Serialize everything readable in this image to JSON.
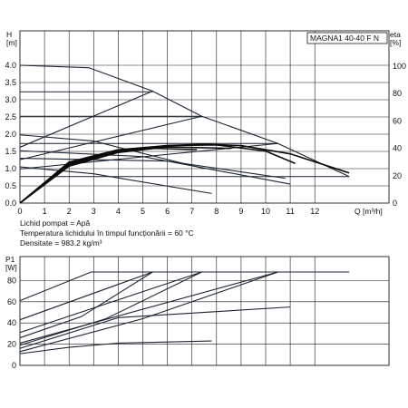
{
  "model_box": "MAGNA1 40-40 F N",
  "info_lines": [
    "Lichid pompat = Apă",
    "Temperatura lichidului în timpul funcționării = 60 °C",
    "Densitate = 983.2 kg/m³"
  ],
  "top_axis": {
    "y_title": "H",
    "y_unit": "[m]",
    "right_title": "eta",
    "right_unit": "[%]",
    "x_title": "Q [m³/h]"
  },
  "bottom_axis": {
    "y_title": "P1",
    "y_unit": "[W]"
  },
  "chart_data": [
    {
      "type": "line",
      "title": "",
      "xlabel": "Q [m³/h]",
      "ylabel": "H [m]",
      "y2label": "eta [%]",
      "xlim": [
        0,
        14
      ],
      "ylim": [
        0,
        4.5
      ],
      "y2lim": [
        0,
        140
      ],
      "x_ticks": [
        "0",
        "1",
        "2",
        "3",
        "4",
        "5",
        "6",
        "7",
        "8",
        "9",
        "10",
        "11",
        "12"
      ],
      "y_ticks": [
        "0.0",
        "0.5",
        "1.0",
        "1.5",
        "2.0",
        "2.5",
        "3.0",
        "3.5",
        "4.0"
      ],
      "y2_ticks": [
        "0",
        "20",
        "40",
        "60",
        "80",
        "100"
      ],
      "grid": true,
      "series_qh": [
        {
          "kind": "max-curve",
          "x": [
            0,
            2.8,
            5.4,
            7.4,
            10.5,
            13.4
          ],
          "y": [
            4.0,
            3.93,
            3.25,
            2.52,
            1.73,
            0.77
          ]
        },
        {
          "kind": "constant-pressure",
          "x": [
            0,
            5.4
          ],
          "y": [
            3.23,
            3.23
          ]
        },
        {
          "kind": "constant-pressure",
          "x": [
            0,
            7.4
          ],
          "y": [
            2.52,
            2.52
          ]
        },
        {
          "kind": "constant-pressure",
          "x": [
            0,
            10.5
          ],
          "y": [
            1.73,
            1.73
          ]
        },
        {
          "kind": "constant-pressure",
          "x": [
            0,
            13.4
          ],
          "y": [
            0.77,
            0.77
          ]
        },
        {
          "kind": "proportional-pressure",
          "x": [
            0,
            5.4
          ],
          "y": [
            1.62,
            3.25
          ]
        },
        {
          "kind": "proportional-pressure",
          "x": [
            0,
            7.4
          ],
          "y": [
            1.26,
            2.52
          ]
        },
        {
          "kind": "proportional-pressure",
          "x": [
            0,
            10.5
          ],
          "y": [
            0.99,
            1.73
          ]
        },
        {
          "kind": "fixed-speed",
          "x": [
            0,
            3,
            7.5
          ],
          "y": [
            1.98,
            1.8,
            1.0
          ]
        },
        {
          "kind": "fixed-speed",
          "x": [
            0,
            5,
            11
          ],
          "y": [
            1.52,
            1.35,
            0.55
          ]
        },
        {
          "kind": "fixed-speed",
          "x": [
            0,
            3,
            7.8
          ],
          "y": [
            1.05,
            0.85,
            0.28
          ]
        },
        {
          "kind": "fixed-speed",
          "x": [
            0,
            6,
            10.8
          ],
          "y": [
            1.3,
            1.22,
            0.72
          ]
        }
      ],
      "series_eta": [
        {
          "x": [
            0,
            2,
            4,
            6,
            7.5,
            9,
            11,
            13.4
          ],
          "y": [
            0,
            29,
            38,
            42,
            43,
            42,
            36,
            22
          ]
        },
        {
          "x": [
            0,
            2,
            4,
            6,
            8,
            10,
            11.2
          ],
          "y": [
            0,
            30,
            39,
            42,
            42.5,
            38,
            29
          ]
        },
        {
          "x": [
            0,
            2,
            4,
            5.5,
            7.2
          ],
          "y": [
            0,
            27,
            37,
            40,
            39
          ]
        },
        {
          "x": [
            0,
            2,
            4,
            6,
            8.6
          ],
          "y": [
            0,
            28,
            38,
            41,
            40
          ]
        }
      ]
    },
    {
      "type": "line",
      "title": "",
      "xlabel": "Q [m³/h]",
      "ylabel": "P1 [W]",
      "xlim": [
        0,
        14
      ],
      "ylim": [
        0,
        98
      ],
      "y_ticks": [
        "0",
        "20",
        "40",
        "60",
        "80"
      ],
      "grid": true,
      "series_p1": [
        {
          "kind": "max",
          "x": [
            0,
            2.9,
            13.4
          ],
          "y": [
            61,
            88,
            88
          ]
        },
        {
          "kind": "constant-pressure",
          "x": [
            0,
            5.4
          ],
          "y": [
            43,
            88
          ]
        },
        {
          "kind": "constant-pressure",
          "x": [
            0,
            7.4
          ],
          "y": [
            31,
            88
          ]
        },
        {
          "kind": "constant-pressure",
          "x": [
            0,
            10.5
          ],
          "y": [
            21,
            88
          ]
        },
        {
          "kind": "proportional-pressure",
          "x": [
            0,
            2.5,
            5.4
          ],
          "y": [
            26,
            46,
            88
          ]
        },
        {
          "kind": "proportional-pressure",
          "x": [
            0,
            3.5,
            7.4
          ],
          "y": [
            19,
            44,
            88
          ]
        },
        {
          "kind": "proportional-pressure",
          "x": [
            0,
            5,
            10.5
          ],
          "y": [
            13,
            44,
            88
          ]
        },
        {
          "kind": "fixed-speed",
          "x": [
            0,
            4,
            11
          ],
          "y": [
            16,
            45,
            55
          ]
        },
        {
          "kind": "fixed-speed",
          "x": [
            0,
            2,
            4,
            7.8
          ],
          "y": [
            11,
            17,
            21,
            23
          ]
        }
      ]
    }
  ]
}
